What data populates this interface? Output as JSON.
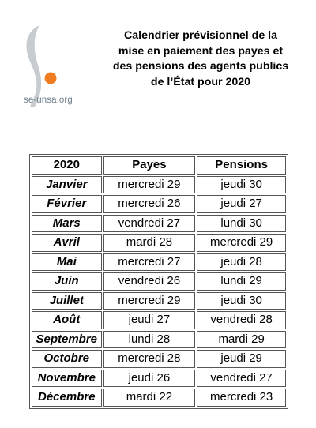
{
  "logo": {
    "text": "se-unsa.org",
    "colors": {
      "s_shape": "#c8ccd0",
      "dot": "#f07d23",
      "text": "#6f7f8c"
    }
  },
  "title": {
    "lines": [
      "Calendrier prévisionnel de la",
      "mise en paiement des payes et",
      "des pensions des agents publics",
      "de l’État pour 2020"
    ]
  },
  "table": {
    "headers": [
      "2020",
      "Payes",
      "Pensions"
    ],
    "rows": [
      {
        "month": "Janvier",
        "payes": "mercredi 29",
        "pensions": "jeudi 30"
      },
      {
        "month": "Février",
        "payes": "mercredi 26",
        "pensions": "jeudi 27"
      },
      {
        "month": "Mars",
        "payes": "vendredi 27",
        "pensions": "lundi 30"
      },
      {
        "month": "Avril",
        "payes": "mardi 28",
        "pensions": "mercredi 29"
      },
      {
        "month": "Mai",
        "payes": "mercredi 27",
        "pensions": "jeudi 28"
      },
      {
        "month": "Juin",
        "payes": "vendredi 26",
        "pensions": "lundi 29"
      },
      {
        "month": "Juillet",
        "payes": "mercredi 29",
        "pensions": "jeudi 30"
      },
      {
        "month": "Août",
        "payes": "jeudi 27",
        "pensions": "vendredi 28"
      },
      {
        "month": "Septembre",
        "payes": "lundi 28",
        "pensions": "mardi 29"
      },
      {
        "month": "Octobre",
        "payes": "mercredi 28",
        "pensions": "jeudi 29"
      },
      {
        "month": "Novembre",
        "payes": "jeudi 26",
        "pensions": "vendredi 27"
      },
      {
        "month": "Décembre",
        "payes": "mardi 22",
        "pensions": "mercredi 23"
      }
    ]
  }
}
